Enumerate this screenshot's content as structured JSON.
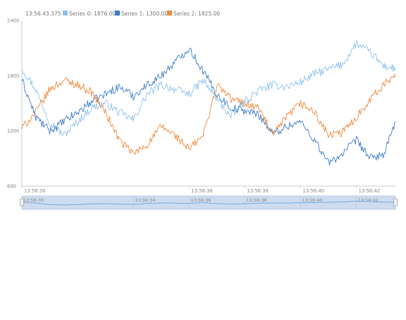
{
  "legend": {
    "time": "13:56:43.375",
    "items": [
      {
        "label": "Series 0: 1876.00",
        "color": "#8ec1ee"
      },
      {
        "label": "Series 1: 1300.00",
        "color": "#3b7cc9"
      },
      {
        "label": "Series 2: 1825.00",
        "color": "#ee8a3f"
      }
    ]
  },
  "colors": {
    "grid_axis": "#cccccc",
    "navigator_fill": "#cddcee",
    "navigator_line": "#6ea8de",
    "handle": "#f2f2f2"
  },
  "chart_data": {
    "type": "line",
    "ylim": [
      600,
      2400
    ],
    "y_ticks": [
      600,
      1200,
      1800,
      2400
    ],
    "x_range": [
      "13:56:30.000",
      "13:56:43.400"
    ],
    "x_ticks": [
      "13:56:30",
      "13:56:36",
      "13:56:38",
      "13:56:40",
      "13:56:42"
    ],
    "navigator_ticks": [
      "13:56:30",
      "13:56:34",
      "13:56:36",
      "13:56:38",
      "13:56:40",
      "13:56:42"
    ],
    "x_seconds": [
      0.0,
      0.5,
      1.0,
      1.5,
      2.0,
      2.5,
      3.0,
      3.5,
      4.0,
      4.5,
      5.0,
      5.5,
      6.0,
      6.5,
      7.0,
      7.5,
      8.0,
      8.5,
      9.0,
      9.5,
      10.0,
      10.5,
      11.0,
      11.5,
      12.0,
      12.5,
      13.0,
      13.4
    ],
    "series": [
      {
        "name": "Series 0",
        "color": "#8ec1ee",
        "values": [
          1880,
          1650,
          1300,
          1150,
          1300,
          1450,
          1500,
          1400,
          1320,
          1600,
          1700,
          1650,
          1600,
          1750,
          1550,
          1350,
          1520,
          1640,
          1700,
          1680,
          1730,
          1820,
          1870,
          1920,
          2150,
          2050,
          1900,
          1876
        ]
      },
      {
        "name": "Series 1",
        "color": "#3b7cc9",
        "values": [
          1750,
          1350,
          1200,
          1300,
          1400,
          1520,
          1600,
          1680,
          1580,
          1700,
          1800,
          1950,
          2100,
          1850,
          1600,
          1450,
          1420,
          1380,
          1170,
          1250,
          1300,
          1100,
          850,
          950,
          1100,
          900,
          950,
          1300
        ]
      },
      {
        "name": "Series 2",
        "color": "#ee8a3f",
        "values": [
          1230,
          1400,
          1650,
          1750,
          1700,
          1620,
          1400,
          1100,
          950,
          1050,
          1250,
          1150,
          1000,
          1150,
          1700,
          1550,
          1500,
          1450,
          1150,
          1350,
          1500,
          1400,
          1150,
          1180,
          1350,
          1550,
          1700,
          1825
        ]
      }
    ]
  }
}
